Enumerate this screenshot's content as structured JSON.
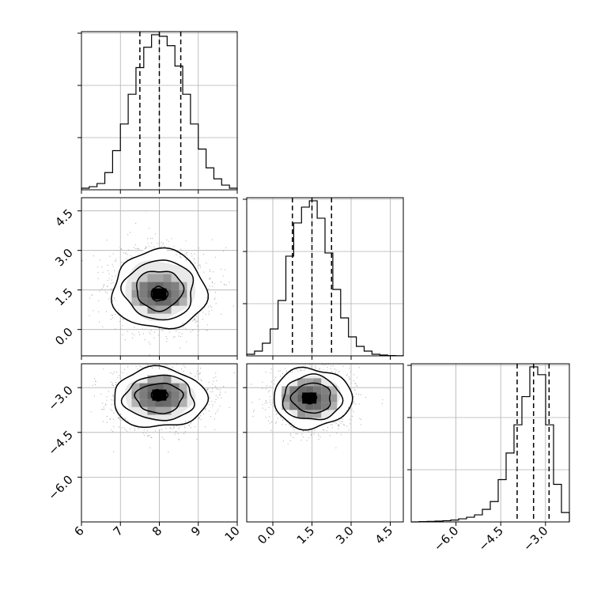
{
  "chart_data": [
    {
      "type": "histogram",
      "panel": "param-1-marginal",
      "x": {
        "range": [
          6,
          10
        ],
        "ticks": [
          6,
          7,
          8,
          9,
          10
        ],
        "tick_labels": [
          "6",
          "7",
          "8",
          "9",
          "10"
        ]
      },
      "bins": [
        6.0,
        6.2,
        6.4,
        6.6,
        6.8,
        7.0,
        7.2,
        7.4,
        7.6,
        7.8,
        8.0,
        8.2,
        8.4,
        8.6,
        8.8,
        9.0,
        9.2,
        9.4,
        9.6,
        9.8,
        10.0
      ],
      "counts": [
        0.01,
        0.02,
        0.04,
        0.11,
        0.25,
        0.42,
        0.61,
        0.78,
        0.91,
        0.99,
        0.98,
        0.92,
        0.79,
        0.61,
        0.42,
        0.26,
        0.14,
        0.07,
        0.03,
        0.01
      ],
      "quantiles": [
        7.5,
        8.0,
        8.55
      ],
      "grid": true
    },
    {
      "type": "histogram",
      "panel": "param-2-marginal",
      "x": {
        "range": [
          -1.0,
          5.0
        ],
        "ticks": [
          0.0,
          1.5,
          3.0,
          4.5
        ],
        "tick_labels": [
          "0.0",
          "1.5",
          "3.0",
          "4.5"
        ]
      },
      "bins": [
        -1.0,
        -0.7,
        -0.4,
        -0.1,
        0.2,
        0.5,
        0.8,
        1.1,
        1.4,
        1.7,
        2.0,
        2.3,
        2.6,
        2.9,
        3.2,
        3.5,
        3.8,
        4.1,
        4.4,
        4.7,
        5.0
      ],
      "counts": [
        0.01,
        0.03,
        0.08,
        0.17,
        0.35,
        0.63,
        0.84,
        0.94,
        0.98,
        0.87,
        0.65,
        0.42,
        0.24,
        0.12,
        0.06,
        0.03,
        0.01,
        0.005,
        0.002,
        0.001
      ],
      "quantiles": [
        0.75,
        1.5,
        2.25
      ],
      "grid": true
    },
    {
      "type": "histogram",
      "panel": "param-3-marginal",
      "x": {
        "range": [
          -7.5,
          -2.2
        ],
        "ticks": [
          -6.0,
          -4.5,
          -3.0
        ],
        "tick_labels": [
          "−6.0",
          "−4.5",
          "−3.0"
        ]
      },
      "bins": [
        -7.5,
        -7.235,
        -6.97,
        -6.705,
        -6.44,
        -6.175,
        -5.91,
        -5.645,
        -5.38,
        -5.115,
        -4.85,
        -4.585,
        -4.32,
        -4.055,
        -3.79,
        -3.525,
        -3.26,
        -2.995,
        -2.73,
        -2.465,
        -2.2
      ],
      "counts": [
        0.0,
        0.002,
        0.003,
        0.005,
        0.008,
        0.012,
        0.02,
        0.03,
        0.045,
        0.08,
        0.13,
        0.27,
        0.44,
        0.62,
        0.8,
        0.99,
        0.94,
        0.62,
        0.24,
        0.06
      ],
      "quantiles": [
        -3.95,
        -3.4,
        -2.88
      ],
      "grid": true
    },
    {
      "type": "contour",
      "panel": "param-2-vs-param-1",
      "x": {
        "range": [
          6,
          10
        ],
        "ticks": [
          6,
          7,
          8,
          9,
          10
        ]
      },
      "y": {
        "range": [
          -1.0,
          5.0
        ],
        "ticks": [
          0.0,
          1.5,
          3.0,
          4.5
        ],
        "tick_labels": [
          "0.0",
          "1.5",
          "3.0",
          "4.5"
        ]
      },
      "mean": [
        8.0,
        1.5
      ],
      "sigma": [
        0.6,
        0.75
      ],
      "density_peak": [
        8.0,
        1.35
      ],
      "contour_levels_sigma": [
        0.5,
        1.0,
        1.5,
        2.0
      ],
      "grid": true
    },
    {
      "type": "contour",
      "panel": "param-3-vs-param-1",
      "x": {
        "range": [
          6,
          10
        ],
        "ticks": [
          6,
          7,
          8,
          9,
          10
        ],
        "tick_labels": [
          "6",
          "7",
          "8",
          "9",
          "10"
        ]
      },
      "y": {
        "range": [
          -7.5,
          -2.2
        ],
        "ticks": [
          -6.0,
          -4.5,
          -3.0
        ],
        "tick_labels": [
          "−6.0",
          "−4.5",
          "−3.0"
        ]
      },
      "mean": [
        8.0,
        -3.35
      ],
      "sigma": [
        0.6,
        0.5
      ],
      "density_peak": [
        8.0,
        -3.25
      ],
      "contour_levels_sigma": [
        0.5,
        1.0,
        1.5,
        2.0
      ],
      "grid": true
    },
    {
      "type": "contour",
      "panel": "param-3-vs-param-2",
      "x": {
        "range": [
          -1.0,
          5.0
        ],
        "ticks": [
          0.0,
          1.5,
          3.0,
          4.5
        ],
        "tick_labels": [
          "0.0",
          "1.5",
          "3.0",
          "4.5"
        ]
      },
      "y": {
        "range": [
          -7.5,
          -2.2
        ],
        "ticks": [
          -6.0,
          -4.5,
          -3.0
        ]
      },
      "mean": [
        1.5,
        -3.35
      ],
      "sigma": [
        0.75,
        0.5
      ],
      "density_peak": [
        1.4,
        -3.35
      ],
      "contour_levels_sigma": [
        0.5,
        1.0,
        1.5,
        2.0
      ],
      "grid": true
    }
  ]
}
